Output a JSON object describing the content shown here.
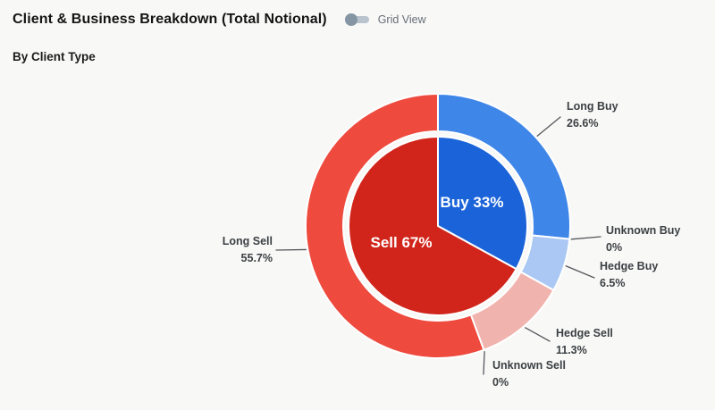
{
  "header": {
    "title": "Client & Business Breakdown (Total Notional)",
    "toggle_label": "Grid View",
    "toggle_state": "off"
  },
  "section": {
    "title": "By Client Type"
  },
  "chart_data": {
    "type": "pie",
    "variant": "nested-donut",
    "title": "Client & Business Breakdown (Total Notional)",
    "subtitle": "By Client Type",
    "unit": "%",
    "start_angle_deg": 0,
    "direction": "clockwise",
    "legend": "none",
    "inner_ring": {
      "slices": [
        {
          "label": "Buy",
          "value": 33,
          "color": "#1b63d9"
        },
        {
          "label": "Sell",
          "value": 67,
          "color": "#d1251b"
        }
      ]
    },
    "outer_ring": {
      "slices": [
        {
          "label": "Long Buy",
          "value": 26.6,
          "color": "#3f86e9"
        },
        {
          "label": "Unknown Buy",
          "value": 0,
          "color": "#6ea3ee"
        },
        {
          "label": "Hedge Buy",
          "value": 6.5,
          "color": "#aac8f3"
        },
        {
          "label": "Hedge Sell",
          "value": 11.3,
          "color": "#f1b3ad"
        },
        {
          "label": "Unknown Sell",
          "value": 0,
          "color": "#f0857b"
        },
        {
          "label": "Long Sell",
          "value": 55.7,
          "color": "#ee4a3e"
        }
      ]
    },
    "colors": {
      "background": "#f8f8f7",
      "label_text": "#3c4043",
      "leader_line": "#55585c",
      "slice_border": "#ffffff"
    }
  }
}
